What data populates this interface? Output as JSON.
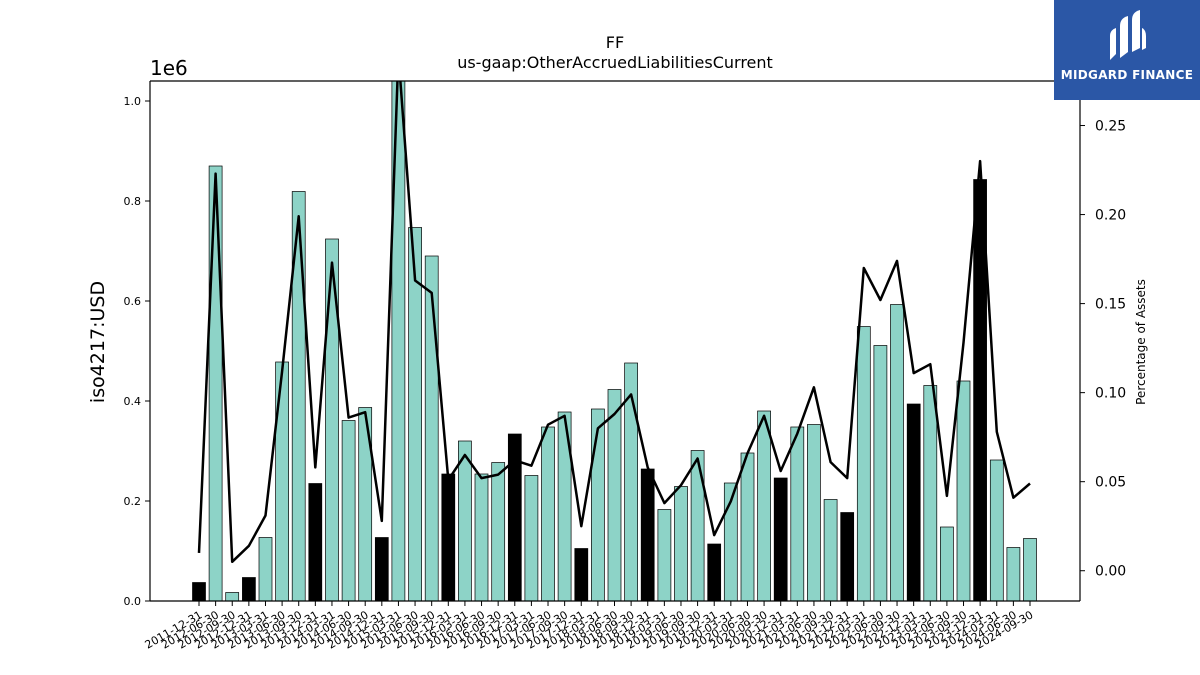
{
  "logo": {
    "text": "MIDGARD FINANCE",
    "icon": "midgard-logo-icon",
    "color": "#2b57a6"
  },
  "chart_data": {
    "type": "bar",
    "title": "FF",
    "subtitle": "us-gaap:OtherAccruedLiabilitiesCurrent",
    "ylabel": "iso4217:USD",
    "y2label": "Percentage of Assets",
    "y_offset_label": "1e6",
    "ylim": [
      0,
      1.04
    ],
    "y_scale": 1000000,
    "y2lim": [
      -0.017,
      0.275
    ],
    "yticks": [
      "0.0",
      "0.2",
      "0.4",
      "0.6",
      "0.8",
      "1.0"
    ],
    "y2ticks": [
      "0.00",
      "0.05",
      "0.10",
      "0.15",
      "0.20",
      "0.25"
    ],
    "bar_colors": {
      "default": "#8dd3c7",
      "highlight": "#000000"
    },
    "line_color": "#000000",
    "categories": [
      "2011-12-31",
      "2012-06-30",
      "2012-09-30",
      "2012-12-31",
      "2013-03-31",
      "2013-06-30",
      "2013-09-30",
      "2013-12-31",
      "2014-03-31",
      "2014-06-30",
      "2014-09-30",
      "2014-12-31",
      "2015-03-31",
      "2015-06-30",
      "2015-09-30",
      "2015-12-31",
      "2016-03-31",
      "2016-06-30",
      "2016-09-30",
      "2016-12-31",
      "2017-03-31",
      "2017-06-30",
      "2017-09-30",
      "2017-12-31",
      "2018-03-31",
      "2018-06-30",
      "2018-09-30",
      "2018-12-31",
      "2019-03-31",
      "2019-06-30",
      "2019-09-30",
      "2019-12-31",
      "2020-03-31",
      "2020-06-30",
      "2020-09-30",
      "2020-12-31",
      "2021-03-31",
      "2021-06-30",
      "2021-09-30",
      "2021-12-31",
      "2022-03-31",
      "2022-06-30",
      "2022-09-30",
      "2022-12-31",
      "2023-03-31",
      "2023-06-30",
      "2023-09-30",
      "2023-12-31",
      "2024-03-31",
      "2024-06-30",
      "2024-09-30"
    ],
    "series": [
      {
        "type": "bar",
        "values": [
          0.037,
          0.87,
          0.017,
          0.047,
          0.127,
          0.478,
          0.819,
          0.235,
          0.724,
          0.361,
          0.387,
          0.127,
          1.05,
          0.747,
          0.69,
          0.254,
          0.32,
          0.254,
          0.277,
          0.334,
          0.251,
          0.348,
          0.378,
          0.105,
          0.384,
          0.423,
          0.476,
          0.264,
          0.183,
          0.229,
          0.301,
          0.114,
          0.236,
          0.296,
          0.38,
          0.246,
          0.348,
          0.353,
          0.203,
          0.177,
          0.549,
          0.511,
          0.593,
          0.394,
          0.431,
          0.148,
          0.44,
          0.843,
          0.282,
          0.107,
          0.125
        ],
        "highlight": [
          true,
          false,
          false,
          true,
          false,
          false,
          false,
          true,
          false,
          false,
          false,
          true,
          false,
          false,
          false,
          true,
          false,
          false,
          false,
          true,
          false,
          false,
          false,
          true,
          false,
          false,
          false,
          true,
          false,
          false,
          false,
          true,
          false,
          false,
          false,
          true,
          false,
          false,
          false,
          true,
          false,
          false,
          false,
          true,
          false,
          false,
          false,
          true,
          false,
          false,
          false
        ]
      },
      {
        "type": "line",
        "axis": "right",
        "values": [
          0.01,
          0.223,
          0.005,
          0.014,
          0.031,
          0.112,
          0.199,
          0.058,
          0.173,
          0.086,
          0.089,
          0.028,
          0.29,
          0.163,
          0.156,
          0.051,
          0.065,
          0.052,
          0.054,
          0.062,
          0.059,
          0.082,
          0.087,
          0.025,
          0.08,
          0.088,
          0.099,
          0.058,
          0.038,
          0.048,
          0.063,
          0.02,
          0.039,
          0.066,
          0.087,
          0.056,
          0.077,
          0.103,
          0.061,
          0.052,
          0.17,
          0.152,
          0.174,
          0.111,
          0.116,
          0.042,
          0.128,
          0.23,
          0.078,
          0.041,
          0.049
        ]
      }
    ]
  }
}
